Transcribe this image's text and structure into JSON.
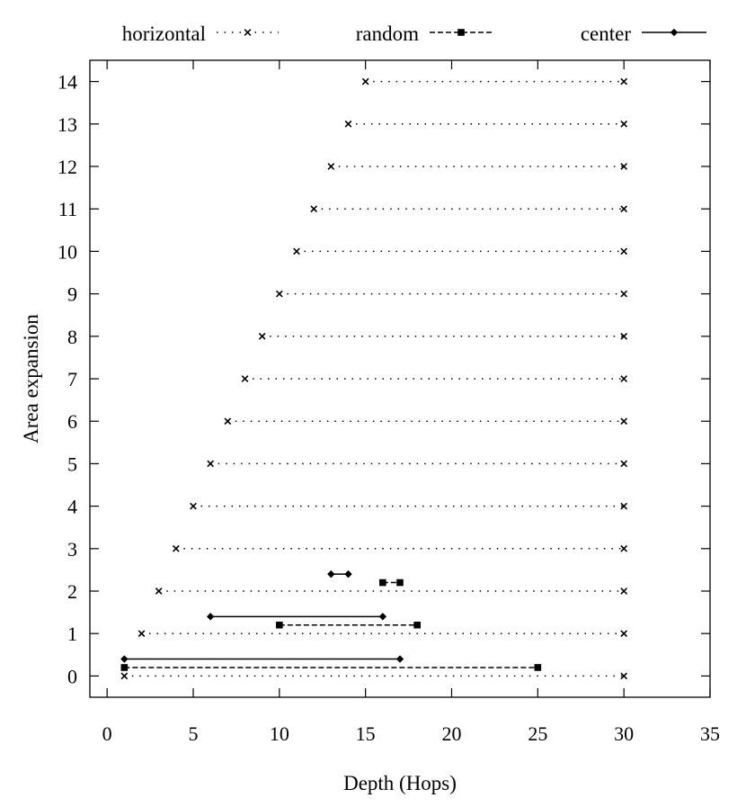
{
  "chart_data": {
    "type": "line",
    "title": "",
    "xlabel": "Depth (Hops)",
    "ylabel": "Area expansion",
    "xlim": [
      -1,
      35
    ],
    "ylim": [
      -0.5,
      14.5
    ],
    "xticks": [
      0,
      5,
      10,
      15,
      20,
      25,
      30,
      35
    ],
    "yticks": [
      0,
      1,
      2,
      3,
      4,
      5,
      6,
      7,
      8,
      9,
      10,
      11,
      12,
      13,
      14
    ],
    "grid": false,
    "legend_position": "top",
    "series": [
      {
        "name": "horizontal",
        "style": "dotted",
        "marker": "x",
        "color": "#000000",
        "segments": [
          {
            "y": 0,
            "x": [
              1,
              30
            ]
          },
          {
            "y": 1,
            "x": [
              2,
              30
            ]
          },
          {
            "y": 2,
            "x": [
              3,
              30
            ]
          },
          {
            "y": 3,
            "x": [
              4,
              30
            ]
          },
          {
            "y": 4,
            "x": [
              5,
              30
            ]
          },
          {
            "y": 5,
            "x": [
              6,
              30
            ]
          },
          {
            "y": 6,
            "x": [
              7,
              30
            ]
          },
          {
            "y": 7,
            "x": [
              8,
              30
            ]
          },
          {
            "y": 8,
            "x": [
              9,
              30
            ]
          },
          {
            "y": 9,
            "x": [
              10,
              30
            ]
          },
          {
            "y": 10,
            "x": [
              11,
              30
            ]
          },
          {
            "y": 11,
            "x": [
              12,
              30
            ]
          },
          {
            "y": 12,
            "x": [
              13,
              30
            ]
          },
          {
            "y": 13,
            "x": [
              14,
              30
            ]
          },
          {
            "y": 14,
            "x": [
              15,
              30
            ]
          }
        ]
      },
      {
        "name": "random",
        "style": "dashed",
        "marker": "square",
        "color": "#000000",
        "segments": [
          {
            "y": 0.2,
            "x": [
              1,
              25
            ]
          },
          {
            "y": 1.2,
            "x": [
              10,
              18
            ]
          },
          {
            "y": 2.2,
            "x": [
              16,
              17
            ]
          }
        ]
      },
      {
        "name": "center",
        "style": "solid",
        "marker": "diamond",
        "color": "#000000",
        "segments": [
          {
            "y": 0.4,
            "x": [
              1,
              17
            ]
          },
          {
            "y": 1.4,
            "x": [
              6,
              16
            ]
          },
          {
            "y": 2.4,
            "x": [
              13,
              14
            ]
          }
        ]
      }
    ]
  }
}
